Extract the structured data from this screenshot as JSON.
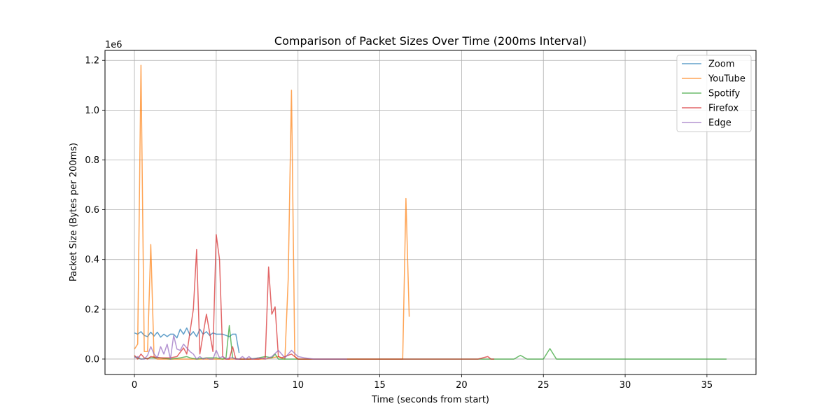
{
  "chart_data": {
    "type": "line",
    "title": "Comparison of Packet Sizes Over Time (200ms Interval)",
    "xlabel": "Time (seconds from start)",
    "ylabel": "Packet Size (Bytes per 200ms)",
    "y_offset_text": "1e6",
    "xlim": [
      -1.8,
      38.0
    ],
    "ylim": [
      -0.062,
      1.24
    ],
    "x_ticks": [
      0,
      5,
      10,
      15,
      20,
      25,
      30,
      35
    ],
    "x_tick_labels": [
      "0",
      "5",
      "10",
      "15",
      "20",
      "25",
      "30",
      "35"
    ],
    "y_ticks": [
      0.0,
      0.2,
      0.4,
      0.6,
      0.8,
      1.0,
      1.2
    ],
    "y_tick_labels": [
      "0.0",
      "0.2",
      "0.4",
      "0.6",
      "0.8",
      "1.0",
      "1.2"
    ],
    "grid": true,
    "legend_position": "top-right",
    "series": [
      {
        "name": "Zoom",
        "color": "#1f77b4",
        "x": [
          0,
          0.2,
          0.4,
          0.6,
          0.8,
          1.0,
          1.2,
          1.4,
          1.6,
          1.8,
          2.0,
          2.2,
          2.4,
          2.6,
          2.8,
          3.0,
          3.2,
          3.4,
          3.6,
          3.8,
          4.0,
          4.2,
          4.4,
          4.6,
          4.8,
          5.0,
          5.2,
          5.4,
          5.6,
          5.8,
          6.0,
          6.2,
          6.4
        ],
        "y": [
          0.105,
          0.1,
          0.11,
          0.095,
          0.09,
          0.108,
          0.092,
          0.108,
          0.088,
          0.1,
          0.09,
          0.1,
          0.1,
          0.085,
          0.12,
          0.1,
          0.125,
          0.095,
          0.11,
          0.09,
          0.12,
          0.1,
          0.11,
          0.095,
          0.105,
          0.1,
          0.1,
          0.1,
          0.095,
          0.09,
          0.1,
          0.1,
          0.025
        ]
      },
      {
        "name": "YouTube",
        "color": "#ff7f0e",
        "x": [
          0,
          0.2,
          0.4,
          0.6,
          0.8,
          1.0,
          1.2,
          1.4,
          2.0,
          3.0,
          4.0,
          5.0,
          6.0,
          7.0,
          8.0,
          8.8,
          9.2,
          9.4,
          9.6,
          9.8,
          10.0,
          11.0,
          12.0,
          13.0,
          14.0,
          15.0,
          16.0,
          16.4,
          16.6,
          16.8
        ],
        "y": [
          0.04,
          0.06,
          1.18,
          0.03,
          0.03,
          0.46,
          0.005,
          0.0,
          0.0,
          0.0,
          0.0,
          0.0,
          0.0,
          0.0,
          0.0,
          0.01,
          0.0,
          0.32,
          1.08,
          0.01,
          0.0,
          0.0,
          0.0,
          0.0,
          0.0,
          0.0,
          0.0,
          0.0,
          0.645,
          0.17
        ]
      },
      {
        "name": "Spotify",
        "color": "#2ca02c",
        "x": [
          0,
          0.4,
          1.0,
          1.6,
          2.2,
          2.8,
          3.2,
          3.4,
          3.8,
          4.4,
          5.0,
          5.4,
          5.6,
          5.8,
          6.0,
          6.4,
          7.0,
          7.6,
          8.0,
          8.4,
          8.6,
          8.8,
          9.2,
          10.0,
          12.0,
          14.0,
          16.0,
          18.0,
          20.0,
          21.6,
          22.0,
          23.2,
          23.6,
          24.0,
          25.0,
          25.4,
          25.8,
          27.0,
          30.0,
          33.0,
          36.2
        ],
        "y": [
          0.01,
          0.0,
          0.005,
          0.005,
          0.0,
          0.005,
          0.01,
          0.005,
          0.0,
          0.005,
          0.005,
          0.0,
          0.005,
          0.135,
          0.005,
          0.0,
          0.0,
          0.005,
          0.01,
          0.005,
          0.02,
          0.0,
          0.0,
          0.0,
          0.0,
          0.0,
          0.0,
          0.0,
          0.0,
          0.0,
          0.0,
          0.0,
          0.015,
          0.0,
          0.0,
          0.042,
          0.0,
          0.0,
          0.0,
          0.0,
          0.0
        ]
      },
      {
        "name": "Firefox",
        "color": "#d62728",
        "x": [
          0,
          0.2,
          0.4,
          0.6,
          0.8,
          1.0,
          1.6,
          2.2,
          2.6,
          3.0,
          3.2,
          3.6,
          3.8,
          4.0,
          4.4,
          4.8,
          5.0,
          5.2,
          5.4,
          5.6,
          5.8,
          6.0,
          6.2,
          7.0,
          7.6,
          8.0,
          8.2,
          8.4,
          8.6,
          8.8,
          9.0,
          9.6,
          10.0,
          12.0,
          15.0,
          18.0,
          21.0,
          21.6,
          21.8,
          22.0
        ],
        "y": [
          0.015,
          0.0,
          0.02,
          0.005,
          0.0,
          0.01,
          0.005,
          0.005,
          0.01,
          0.045,
          0.02,
          0.2,
          0.44,
          0.02,
          0.18,
          0.03,
          0.5,
          0.4,
          0.01,
          0.0,
          0.0,
          0.05,
          0.0,
          0.0,
          0.0,
          0.005,
          0.37,
          0.18,
          0.21,
          0.01,
          0.005,
          0.02,
          0.0,
          0.0,
          0.0,
          0.0,
          0.0,
          0.01,
          0.0,
          0.0
        ]
      },
      {
        "name": "Edge",
        "color": "#9467bd",
        "x": [
          0,
          0.2,
          0.4,
          0.6,
          0.8,
          1.0,
          1.2,
          1.4,
          1.6,
          1.8,
          2.0,
          2.2,
          2.4,
          2.6,
          2.8,
          3.0,
          3.2,
          3.4,
          3.6,
          3.8,
          4.0,
          4.2,
          4.4,
          4.6,
          4.8,
          5.0,
          5.2,
          5.4,
          5.6,
          5.8,
          6.0,
          6.2,
          6.4,
          6.6,
          6.8,
          7.0,
          7.2,
          7.6,
          8.0,
          8.4,
          8.8,
          9.2,
          9.6,
          10.0,
          10.4,
          11.0,
          12.0,
          13.0
        ],
        "y": [
          0.005,
          0.01,
          0.0,
          0.0,
          0.015,
          0.05,
          0.02,
          0.005,
          0.05,
          0.02,
          0.06,
          0.0,
          0.095,
          0.04,
          0.035,
          0.06,
          0.045,
          0.03,
          0.02,
          0.0,
          0.01,
          0.0,
          0.005,
          0.0,
          0.0,
          0.035,
          0.005,
          0.01,
          0.0,
          0.005,
          0.005,
          0.0,
          0.0,
          0.01,
          0.0,
          0.01,
          0.0,
          0.005,
          0.0,
          0.01,
          0.035,
          0.005,
          0.035,
          0.01,
          0.005,
          0.0,
          0.0,
          0.0
        ]
      }
    ]
  }
}
